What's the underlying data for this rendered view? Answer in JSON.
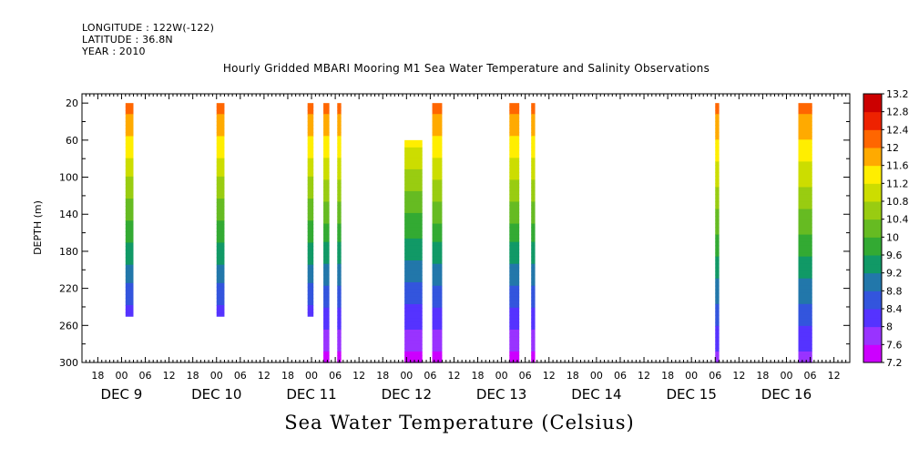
{
  "header": {
    "longitude": "LONGITUDE : 122W(-122)",
    "latitude": "LATITUDE : 36.8N",
    "year": "YEAR : 2010"
  },
  "chart_data": {
    "type": "heatmap",
    "title": "Hourly Gridded MBARI Mooring M1 Sea Water Temperature and Salinity Observations",
    "subtitle": "Sea Water Temperature (Celsius)",
    "xlabel": "",
    "ylabel": "DEPTH (m)",
    "x_unit": "hours since DEC 9 00:00, 2010",
    "xlim": [
      -10,
      184
    ],
    "ylim": [
      300,
      10
    ],
    "y_ticks": [
      20,
      60,
      100,
      140,
      180,
      220,
      260,
      300
    ],
    "x_hour_ticks": [
      "18",
      "00",
      "06",
      "12",
      "18",
      "00",
      "06",
      "12",
      "18",
      "00",
      "06",
      "12",
      "18",
      "00",
      "06",
      "12",
      "18",
      "00",
      "06",
      "12",
      "18",
      "00",
      "06",
      "12",
      "18",
      "00",
      "06",
      "12",
      "18",
      "00",
      "06",
      "12"
    ],
    "x_day_labels": [
      "DEC  9",
      "DEC 10",
      "DEC 11",
      "DEC 12",
      "DEC 13",
      "DEC 14",
      "DEC 15",
      "DEC 16"
    ],
    "colorbar": {
      "min": 7.2,
      "max": 13.2,
      "step": 0.2,
      "labels": [
        "13.2",
        "12.8",
        "12.4",
        "12",
        "11.6",
        "11.2",
        "10.8",
        "10.4",
        "10",
        "9.6",
        "9.2",
        "8.8",
        "8.4",
        "8",
        "7.6",
        "7.2"
      ],
      "stops": [
        {
          "v": 7.2,
          "c": "#cc00ff"
        },
        {
          "v": 7.6,
          "c": "#9933ff"
        },
        {
          "v": 8.0,
          "c": "#5533ff"
        },
        {
          "v": 8.4,
          "c": "#3355dd"
        },
        {
          "v": 8.8,
          "c": "#2277aa"
        },
        {
          "v": 9.2,
          "c": "#119966"
        },
        {
          "v": 9.6,
          "c": "#33aa33"
        },
        {
          "v": 10.0,
          "c": "#66bb22"
        },
        {
          "v": 10.4,
          "c": "#99cc11"
        },
        {
          "v": 10.8,
          "c": "#ccdd00"
        },
        {
          "v": 11.2,
          "c": "#ffee00"
        },
        {
          "v": 11.6,
          "c": "#ffaa00"
        },
        {
          "v": 12.0,
          "c": "#ff6600"
        },
        {
          "v": 12.4,
          "c": "#ee2200"
        },
        {
          "v": 12.8,
          "c": "#cc0000"
        },
        {
          "v": 13.2,
          "c": "#990000"
        }
      ]
    },
    "columns": [
      {
        "start": 1,
        "end": 3,
        "depth_top": 20,
        "depth_bottom": 250,
        "t_top": 12.2,
        "t_bottom": 8.2
      },
      {
        "start": 24,
        "end": 26,
        "depth_top": 20,
        "depth_bottom": 250,
        "t_top": 12.2,
        "t_bottom": 8.2
      },
      {
        "start": 47,
        "end": 48.5,
        "depth_top": 20,
        "depth_bottom": 250,
        "t_top": 12.2,
        "t_bottom": 8.2
      },
      {
        "start": 51,
        "end": 52.5,
        "depth_top": 20,
        "depth_bottom": 300,
        "t_top": 12.2,
        "t_bottom": 7.4
      },
      {
        "start": 54.5,
        "end": 55.5,
        "depth_top": 20,
        "depth_bottom": 300,
        "t_top": 12.2,
        "t_bottom": 7.4
      },
      {
        "start": 71.5,
        "end": 76,
        "depth_top": 60,
        "depth_bottom": 300,
        "t_top": 11.3,
        "t_bottom": 7.4
      },
      {
        "start": 78.5,
        "end": 81,
        "depth_top": 20,
        "depth_bottom": 300,
        "t_top": 12.2,
        "t_bottom": 7.4
      },
      {
        "start": 98,
        "end": 100.5,
        "depth_top": 20,
        "depth_bottom": 300,
        "t_top": 12.2,
        "t_bottom": 7.4
      },
      {
        "start": 103.5,
        "end": 104.5,
        "depth_top": 20,
        "depth_bottom": 300,
        "t_top": 12.2,
        "t_bottom": 7.4
      },
      {
        "start": 150,
        "end": 151,
        "depth_top": 20,
        "depth_bottom": 300,
        "t_top": 12.2,
        "t_bottom": 7.8
      },
      {
        "start": 171,
        "end": 174.5,
        "depth_top": 20,
        "depth_bottom": 300,
        "t_top": 12.2,
        "t_bottom": 7.8
      }
    ]
  }
}
